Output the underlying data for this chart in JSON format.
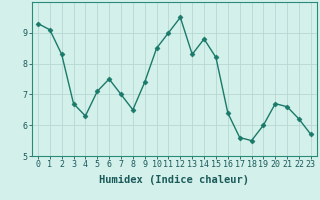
{
  "x": [
    0,
    1,
    2,
    3,
    4,
    5,
    6,
    7,
    8,
    9,
    10,
    11,
    12,
    13,
    14,
    15,
    16,
    17,
    18,
    19,
    20,
    21,
    22,
    23
  ],
  "y": [
    9.3,
    9.1,
    8.3,
    6.7,
    6.3,
    7.1,
    7.5,
    7.0,
    6.5,
    7.4,
    8.5,
    9.0,
    9.5,
    8.3,
    8.8,
    8.2,
    6.4,
    5.6,
    5.5,
    6.0,
    6.7,
    6.6,
    6.2,
    5.7
  ],
  "line_color": "#1a7a6a",
  "marker": "D",
  "marker_size": 2.5,
  "bg_color": "#d4f0eb",
  "grid_color": "#b8d8d2",
  "xlabel": "Humidex (Indice chaleur)",
  "ylim": [
    5,
    10
  ],
  "xlim": [
    -0.5,
    23.5
  ],
  "yticks": [
    5,
    6,
    7,
    8,
    9
  ],
  "xticks": [
    0,
    1,
    2,
    3,
    4,
    5,
    6,
    7,
    8,
    9,
    10,
    11,
    12,
    13,
    14,
    15,
    16,
    17,
    18,
    19,
    20,
    21,
    22,
    23
  ],
  "tick_fontsize": 6,
  "xlabel_fontsize": 7.5,
  "linewidth": 1.0,
  "spine_color": "#2a8a7a",
  "tick_color": "#1a5a5a"
}
